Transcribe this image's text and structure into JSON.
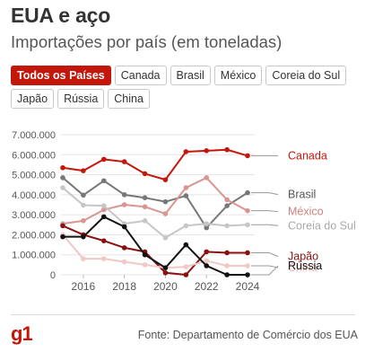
{
  "header": {
    "title": "EUA e aço",
    "subtitle": "Importações por país (em toneladas)"
  },
  "tabs": {
    "row1": [
      {
        "label": "Todos os Países",
        "active": true
      },
      {
        "label": "Canada",
        "active": false
      },
      {
        "label": "Brasil",
        "active": false
      },
      {
        "label": "México",
        "active": false
      },
      {
        "label": "Coreia do Sul",
        "active": false
      }
    ],
    "row2": [
      {
        "label": "Japão",
        "active": false
      },
      {
        "label": "Rússia",
        "active": false
      },
      {
        "label": "China",
        "active": false
      }
    ]
  },
  "footer": {
    "logo": "g1",
    "source": "Fonte: Departamento de Comércio dos EUA"
  },
  "colors": {
    "accent": "#c4170c",
    "grid": "#e5e5e5",
    "axis_text": "#555555"
  },
  "chart_data": {
    "type": "line",
    "x": [
      2015,
      2016,
      2017,
      2018,
      2019,
      2020,
      2021,
      2022,
      2023,
      2024
    ],
    "xticks": [
      2016,
      2018,
      2020,
      2022,
      2024
    ],
    "ylim": [
      0,
      7000000
    ],
    "yticks": [
      0,
      1000000,
      2000000,
      3000000,
      4000000,
      5000000,
      6000000,
      7000000
    ],
    "ytick_labels": [
      "0",
      "1.000.000",
      "2.000.000",
      "3.000.000",
      "4.000.000",
      "5.000.000",
      "6.000.000",
      "7.000.000"
    ],
    "grid": true,
    "series": [
      {
        "name": "Canada",
        "color": "#c4170c",
        "label_color": "#c4170c",
        "label_offset": 0,
        "values": [
          5350000,
          5200000,
          5770000,
          5650000,
          5050000,
          4750000,
          6150000,
          6200000,
          6250000,
          5950000
        ]
      },
      {
        "name": "Brasil",
        "color": "#777777",
        "label_color": "#555555",
        "label_offset": 2,
        "values": [
          4850000,
          3980000,
          4700000,
          4000000,
          3850000,
          3650000,
          3950000,
          2350000,
          3450000,
          4100000
        ]
      },
      {
        "name": "México",
        "color": "#d99591",
        "label_color": "#d0807b",
        "label_offset": 1,
        "values": [
          2550000,
          2700000,
          3250000,
          3500000,
          3400000,
          3050000,
          4350000,
          4850000,
          3750000,
          3200000
        ]
      },
      {
        "name": "Coreia do Sul",
        "color": "#c6c6c6",
        "label_color": "#aaaaaa",
        "label_offset": 1,
        "values": [
          4350000,
          3480000,
          3450000,
          2550000,
          2700000,
          1850000,
          2450000,
          2550000,
          2450000,
          2500000
        ]
      },
      {
        "name": "Japão",
        "color": "#8a1010",
        "label_color": "#8a1010",
        "label_offset": 4,
        "values": [
          2450000,
          2000000,
          1700000,
          1350000,
          1150000,
          100000,
          0,
          1150000,
          1100000,
          1100000
        ]
      },
      {
        "name": "China",
        "color": "#f0c8c6",
        "label_color": "#f2b3b0",
        "label_offset": 2,
        "values": [
          2000000,
          800000,
          800000,
          650000,
          500000,
          350000,
          400000,
          700000,
          450000,
          450000
        ]
      },
      {
        "name": "Rússia",
        "color": "#111111",
        "label_color": "#111111",
        "label_offset": -10,
        "values": [
          1900000,
          1900000,
          2900000,
          2400000,
          1000000,
          350000,
          1500000,
          450000,
          0,
          0
        ]
      }
    ]
  }
}
